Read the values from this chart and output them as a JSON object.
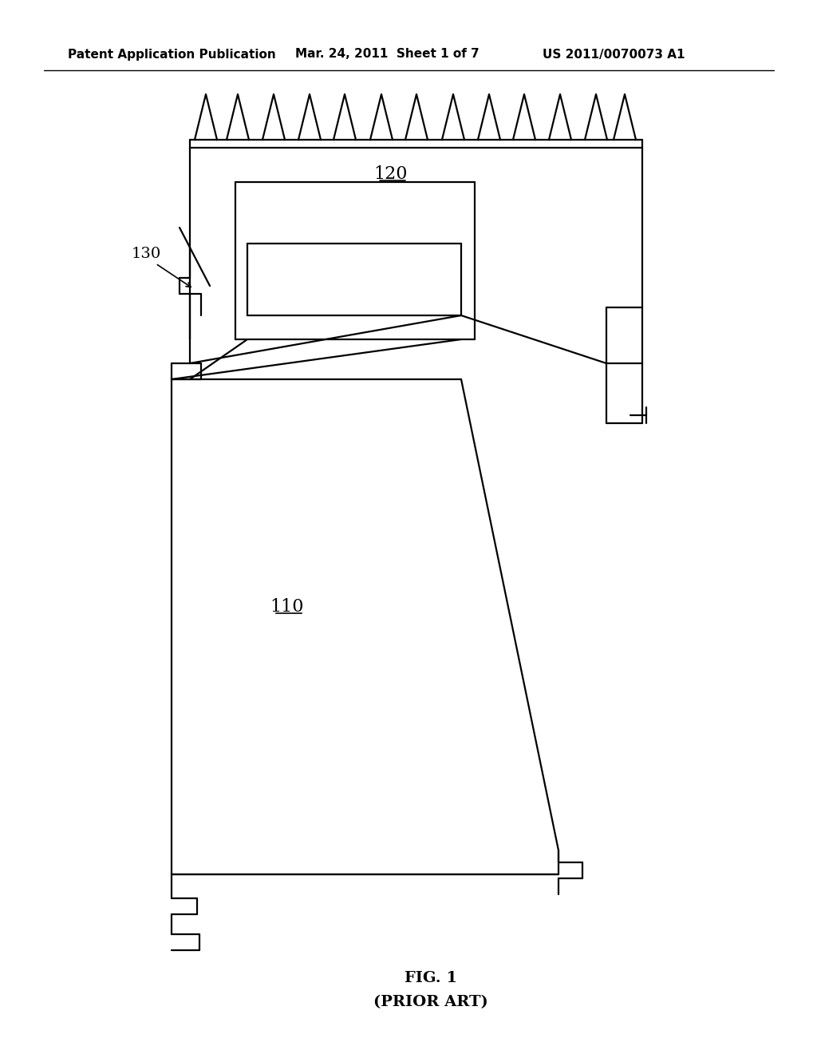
{
  "background_color": "#ffffff",
  "line_color": "#000000",
  "line_width": 1.6,
  "header_left": "Patent Application Publication",
  "header_mid": "Mar. 24, 2011  Sheet 1 of 7",
  "header_right": "US 2011/0070073 A1",
  "label_120": "120",
  "label_130": "130",
  "label_110": "110",
  "fig_label": "FIG. 1",
  "fig_sublabel": "(PRIOR ART)"
}
